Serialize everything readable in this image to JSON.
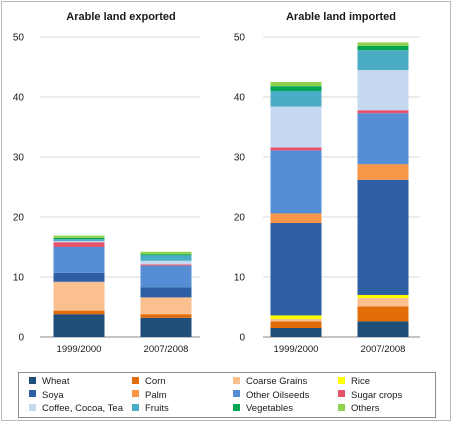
{
  "chart_data": [
    {
      "type": "bar",
      "stacked": true,
      "title": "Arable land exported",
      "categories": [
        "1999/2000",
        "2007/2008"
      ],
      "yticks": [
        "0",
        "10",
        "20",
        "30",
        "40",
        "50"
      ],
      "ylim": [
        0,
        50
      ],
      "grid": true,
      "series": [
        {
          "name": "Wheat",
          "values": [
            3.8,
            3.2
          ]
        },
        {
          "name": "Corn",
          "values": [
            0.6,
            0.6
          ]
        },
        {
          "name": "Coarse Grains",
          "values": [
            4.8,
            2.8
          ]
        },
        {
          "name": "Rice",
          "values": [
            0.0,
            0.0
          ]
        },
        {
          "name": "Soya",
          "values": [
            1.5,
            1.7
          ]
        },
        {
          "name": "Palm",
          "values": [
            0.0,
            0.0
          ]
        },
        {
          "name": "Other Oilseeds",
          "values": [
            4.3,
            3.6
          ]
        },
        {
          "name": "Sugar crops",
          "values": [
            0.8,
            0.2
          ]
        },
        {
          "name": "Coffee, Cocoa, Tea",
          "values": [
            0.2,
            0.6
          ]
        },
        {
          "name": "Fruits",
          "values": [
            0.3,
            0.9
          ]
        },
        {
          "name": "Vegetables",
          "values": [
            0.2,
            0.2
          ]
        },
        {
          "name": "Others",
          "values": [
            0.4,
            0.4
          ]
        }
      ]
    },
    {
      "type": "bar",
      "stacked": true,
      "title": "Arable land imported",
      "categories": [
        "1999/2000",
        "2007/2008"
      ],
      "yticks": [
        "0",
        "10",
        "20",
        "30",
        "40",
        "50"
      ],
      "ylim": [
        0,
        50
      ],
      "grid": true,
      "series": [
        {
          "name": "Wheat",
          "values": [
            1.5,
            2.6
          ]
        },
        {
          "name": "Corn",
          "values": [
            1.1,
            2.5
          ]
        },
        {
          "name": "Coarse Grains",
          "values": [
            0.4,
            1.4
          ]
        },
        {
          "name": "Rice",
          "values": [
            0.6,
            0.5
          ]
        },
        {
          "name": "Soya",
          "values": [
            15.4,
            19.2
          ]
        },
        {
          "name": "Palm",
          "values": [
            1.6,
            2.6
          ]
        },
        {
          "name": "Other Oilseeds",
          "values": [
            10.5,
            8.5
          ]
        },
        {
          "name": "Sugar crops",
          "values": [
            0.5,
            0.5
          ]
        },
        {
          "name": "Coffee, Cocoa, Tea",
          "values": [
            6.8,
            6.7
          ]
        },
        {
          "name": "Fruits",
          "values": [
            2.6,
            3.3
          ]
        },
        {
          "name": "Vegetables",
          "values": [
            0.8,
            0.7
          ]
        },
        {
          "name": "Others",
          "values": [
            0.7,
            0.6
          ]
        }
      ]
    }
  ],
  "legend": {
    "items": [
      {
        "name": "Wheat",
        "color": "#1f4e79"
      },
      {
        "name": "Corn",
        "color": "#e36c0a"
      },
      {
        "name": "Coarse Grains",
        "color": "#fac090"
      },
      {
        "name": "Rice",
        "color": "#ffff00"
      },
      {
        "name": "Soya",
        "color": "#2e5fa3"
      },
      {
        "name": "Palm",
        "color": "#f79646"
      },
      {
        "name": "Other Oilseeds",
        "color": "#558ed5"
      },
      {
        "name": "Sugar crops",
        "color": "#e5546a"
      },
      {
        "name": "Coffee, Cocoa, Tea",
        "color": "#c6d9f1"
      },
      {
        "name": "Fruits",
        "color": "#4bacc6"
      },
      {
        "name": "Vegetables",
        "color": "#00a651"
      },
      {
        "name": "Others",
        "color": "#92d050"
      }
    ]
  }
}
